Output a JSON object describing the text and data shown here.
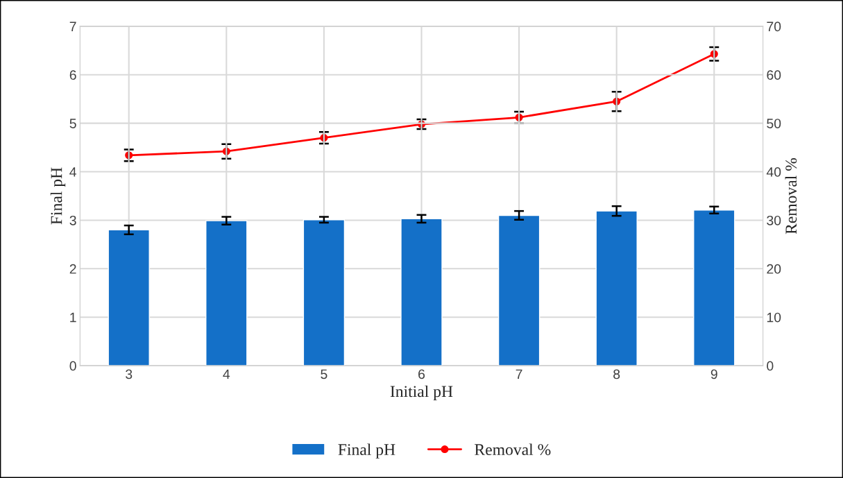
{
  "chart_data": {
    "type": "bar",
    "xlabel": "Initial pH",
    "ylabel": "Final pH",
    "y2label": "Removal %",
    "categories": [
      "3",
      "4",
      "5",
      "6",
      "7",
      "8",
      "9"
    ],
    "series": [
      {
        "name": "Final pH",
        "color": "#1470c8",
        "values": [
          2.8,
          2.99,
          3.01,
          3.03,
          3.1,
          3.19,
          3.21
        ],
        "errors": [
          0.09,
          0.08,
          0.06,
          0.08,
          0.09,
          0.1,
          0.07
        ]
      },
      {
        "name": "Removal %",
        "type": "line",
        "axis": "y2",
        "color": "#ff0000",
        "marker": "circle",
        "values": [
          43.4,
          44.2,
          47.0,
          49.8,
          51.2,
          54.5,
          64.3
        ],
        "errors": [
          1.2,
          1.5,
          1.2,
          1.0,
          1.2,
          2.0,
          1.4
        ]
      }
    ],
    "ylim": [
      0,
      7
    ],
    "yticks": [
      0,
      1,
      2,
      3,
      4,
      5,
      6,
      7
    ],
    "y2lim": [
      0,
      70
    ],
    "y2ticks": [
      0,
      10,
      20,
      30,
      40,
      50,
      60,
      70
    ],
    "grid": true,
    "legend": "bottom"
  }
}
